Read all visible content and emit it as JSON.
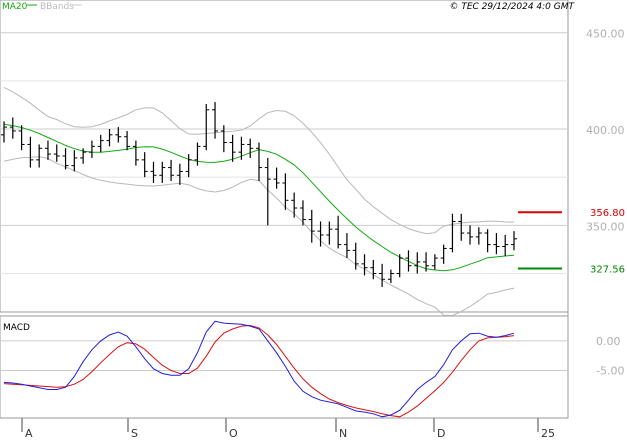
{
  "legend": {
    "ma_label": "MA20",
    "bb_label": "BBands",
    "ma_color": "#11aa11",
    "bb_color": "#bbbbbb",
    "copyright": "© TEC 29/12/2024 4:0 GMT"
  },
  "macd_panel": {
    "title": "MACD"
  },
  "colors": {
    "price": "#000000",
    "ma20": "#11aa11",
    "bbands": "#b8b8b8",
    "macd": "#1f1fdd",
    "signal": "#dd1111",
    "resistance": "#dd0000",
    "support": "#008800",
    "grid": "#cccccc",
    "axis_text": "#b0b0b0"
  },
  "chart_data": [
    {
      "type": "ohlc",
      "panel": "price",
      "title": "",
      "y_ticks": [
        {
          "value": 350,
          "label": "350.00"
        },
        {
          "value": 400,
          "label": "400.00"
        },
        {
          "value": 450,
          "label": "450.00"
        }
      ],
      "ylim": [
        305,
        467
      ],
      "x_ticks": [
        "A",
        "S",
        "O",
        "N",
        "D",
        "25"
      ],
      "grid": true,
      "levels": [
        {
          "name": "resistance",
          "value": 356.8,
          "label": "356.80"
        },
        {
          "name": "support",
          "value": 327.56,
          "label": "327.56"
        }
      ],
      "series": [
        {
          "name": "MA20",
          "values": [
            402.5,
            401.8,
            400.8,
            399.4,
            397.7,
            395.6,
            393.6,
            391.5,
            389.8,
            388.6,
            387.9,
            387.9,
            388.4,
            388.9,
            389.5,
            390.4,
            390.8,
            390.7,
            389.6,
            387.9,
            386.0,
            384.3,
            383.2,
            382.8,
            382.7,
            383.3,
            384.3,
            385.9,
            387.7,
            389.3,
            388.4,
            386.9,
            384.3,
            381.4,
            377.3,
            372.4,
            367.4,
            362.6,
            357.9,
            353.5,
            349.2,
            345.5,
            342.0,
            339.0,
            336.0,
            333.6,
            331.3,
            329.1,
            327.5,
            326.8,
            326.4,
            326.9,
            328.2,
            329.8,
            331.4,
            333.2,
            333.6,
            334.1,
            334.5
          ]
        },
        {
          "name": "BBands upper",
          "values": [
            421.6,
            419.3,
            416.5,
            413.4,
            409.8,
            406.5,
            404.9,
            402.7,
            401.2,
            400.9,
            401.2,
            402.4,
            404.2,
            405.8,
            407.6,
            410.0,
            411.0,
            411.0,
            408.4,
            404.4,
            400.2,
            397.4,
            397.3,
            397.7,
            398.1,
            398.5,
            398.8,
            399.4,
            401.6,
            405.3,
            408.5,
            409.6,
            409.2,
            406.8,
            403.0,
            398.3,
            392.9,
            387.0,
            380.3,
            373.7,
            368.8,
            363.6,
            359.7,
            356.3,
            352.9,
            350.5,
            348.3,
            346.8,
            345.7,
            346.2,
            349.6,
            350.6,
            351.2,
            351.7,
            351.8,
            352.2,
            352.1,
            351.8,
            351.7
          ]
        },
        {
          "name": "BBands lower",
          "values": [
            383.3,
            384.3,
            385.1,
            385.4,
            385.6,
            384.7,
            382.2,
            380.3,
            378.4,
            376.4,
            374.6,
            373.4,
            372.5,
            371.9,
            371.4,
            370.8,
            370.6,
            370.4,
            370.8,
            371.4,
            371.8,
            371.1,
            369.1,
            367.9,
            367.3,
            368.1,
            369.8,
            372.3,
            373.9,
            373.3,
            368.3,
            364.2,
            359.4,
            356.0,
            351.6,
            346.5,
            341.9,
            338.2,
            335.5,
            333.3,
            329.6,
            327.4,
            324.3,
            321.6,
            319.0,
            316.7,
            314.3,
            311.5,
            309.3,
            307.5,
            303.3,
            303.2,
            305.2,
            307.9,
            310.9,
            314.3,
            315.2,
            316.4,
            317.4
          ]
        },
        {
          "name": "Price",
          "ohlc": [
            [
              397,
              404,
              393,
              401
            ],
            [
              401,
              406,
              395,
              399
            ],
            [
              399,
              402,
              389,
              392
            ],
            [
              392,
              396,
              380,
              384
            ],
            [
              384,
              392,
              380,
              390
            ],
            [
              390,
              394,
              384,
              387
            ],
            [
              387,
              392,
              383,
              386
            ],
            [
              386,
              390,
              379,
              381
            ],
            [
              381,
              389,
              378,
              385
            ],
            [
              385,
              390,
              382,
              388
            ],
            [
              388,
              394,
              385,
              391
            ],
            [
              391,
              397,
              388,
              394
            ],
            [
              394,
              400,
              391,
              397
            ],
            [
              397,
              401,
              393,
              396
            ],
            [
              396,
              399,
              389,
              391
            ],
            [
              391,
              394,
              381,
              384
            ],
            [
              384,
              388,
              375,
              378
            ],
            [
              378,
              383,
              372,
              376
            ],
            [
              376,
              383,
              372,
              380
            ],
            [
              380,
              384,
              373,
              376
            ],
            [
              376,
              382,
              371,
              378
            ],
            [
              378,
              387,
              375,
              384
            ],
            [
              384,
              393,
              381,
              391
            ],
            [
              391,
              413,
              389,
              410
            ],
            [
              410,
              414,
              395,
              399
            ],
            [
              399,
              402,
              388,
              393
            ],
            [
              393,
              397,
              383,
              388
            ],
            [
              388,
              396,
              384,
              392
            ],
            [
              392,
              395,
              385,
              390
            ],
            [
              390,
              393,
              373,
              380
            ],
            [
              380,
              385,
              350,
              374
            ],
            [
              374,
              380,
              369,
              372
            ],
            [
              372,
              377,
              358,
              363
            ],
            [
              363,
              367,
              354,
              359
            ],
            [
              359,
              363,
              350,
              353
            ],
            [
              353,
              358,
              341,
              347
            ],
            [
              347,
              352,
              339,
              345
            ],
            [
              345,
              352,
              340,
              348
            ],
            [
              348,
              355,
              338,
              340
            ],
            [
              340,
              346,
              333,
              337
            ],
            [
              337,
              341,
              327,
              330
            ],
            [
              330,
              335,
              324,
              328
            ],
            [
              328,
              332,
              322,
              325
            ],
            [
              325,
              330,
              318,
              322
            ],
            [
              322,
              327,
              320,
              325
            ],
            [
              325,
              335,
              323,
              333
            ],
            [
              333,
              337,
              326,
              329
            ],
            [
              329,
              336,
              325,
              331
            ],
            [
              331,
              336,
              326,
              329
            ],
            [
              329,
              335,
              327,
              333
            ],
            [
              333,
              340,
              330,
              338
            ],
            [
              338,
              356,
              336,
              352
            ],
            [
              352,
              356,
              342,
              346
            ],
            [
              346,
              350,
              340,
              344
            ],
            [
              344,
              349,
              340,
              346
            ],
            [
              346,
              348,
              336,
              340
            ],
            [
              340,
              346,
              335,
              339
            ],
            [
              339,
              345,
              334,
              340
            ],
            [
              340,
              347,
              337,
              343
            ]
          ]
        }
      ]
    },
    {
      "type": "line",
      "panel": "macd",
      "title": "MACD",
      "y_ticks": [
        {
          "value": 0,
          "label": "0.00"
        },
        {
          "value": -5,
          "label": "-5.00"
        }
      ],
      "ylim": [
        -13,
        4.2
      ],
      "series": [
        {
          "name": "MACD",
          "values": [
            -7.0,
            -7.1,
            -7.3,
            -7.6,
            -7.9,
            -8.2,
            -8.2,
            -7.8,
            -6.0,
            -3.5,
            -1.5,
            0.0,
            1.0,
            1.5,
            0.8,
            -1.0,
            -3.0,
            -4.7,
            -5.5,
            -5.8,
            -5.8,
            -4.7,
            -2.0,
            1.5,
            3.3,
            3.0,
            2.9,
            2.8,
            2.5,
            2.0,
            0.0,
            -2.0,
            -4.3,
            -6.8,
            -8.5,
            -9.4,
            -10.0,
            -10.3,
            -10.6,
            -11.2,
            -11.8,
            -12.0,
            -12.3,
            -12.8,
            -12.5,
            -11.7,
            -10.0,
            -8.2,
            -7.0,
            -6.0,
            -4.0,
            -1.5,
            0.0,
            1.2,
            1.3,
            0.8,
            0.6,
            0.9,
            1.3
          ]
        },
        {
          "name": "Signal",
          "values": [
            -7.2,
            -7.3,
            -7.4,
            -7.5,
            -7.6,
            -7.7,
            -7.8,
            -7.7,
            -7.3,
            -6.5,
            -5.2,
            -3.7,
            -2.3,
            -1.0,
            -0.3,
            -0.5,
            -1.4,
            -2.8,
            -4.1,
            -5.0,
            -5.5,
            -5.5,
            -4.6,
            -2.6,
            -0.2,
            1.3,
            2.0,
            2.5,
            2.6,
            2.2,
            1.0,
            -0.6,
            -2.6,
            -4.6,
            -6.4,
            -7.8,
            -8.9,
            -9.8,
            -10.4,
            -10.9,
            -11.3,
            -11.6,
            -11.9,
            -12.3,
            -12.6,
            -12.8,
            -12.0,
            -11.0,
            -9.7,
            -8.4,
            -7.0,
            -5.3,
            -3.3,
            -1.5,
            0.0,
            0.5,
            0.6,
            0.7,
            0.9
          ]
        }
      ]
    }
  ]
}
